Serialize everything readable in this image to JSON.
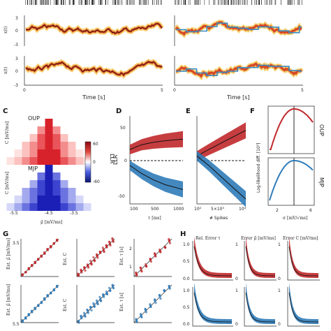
{
  "panel_labels": {
    "C": "C",
    "D": "D",
    "E": "E",
    "F": "F",
    "G": "G",
    "H": "H"
  },
  "top": {
    "ylabel": "x(t)",
    "yticks_top": [
      "3",
      "0",
      "-3"
    ],
    "yticks_bottom": [
      "3",
      "0",
      "-3"
    ],
    "xlabel": "Time [s]",
    "xticks": [
      "0",
      "5"
    ]
  },
  "panel_c": {
    "oup_label": "OUP",
    "mjp_label": "MJP",
    "ylabel": "C [mV/ms]",
    "xlabel": "μ̃ [mV/ms]",
    "xticks": [
      "-5.5",
      "-4.5",
      "-3.5"
    ],
    "colorbar_label": "LLR",
    "colorbar_ticks": [
      "60",
      "0",
      "-60"
    ]
  },
  "panel_d": {
    "ylabel": "LLR",
    "xlabel": "τ [ms]",
    "xticks": [
      "100",
      "500",
      "1000"
    ],
    "yticks": [
      "50",
      "0",
      "-50"
    ]
  },
  "panel_e": {
    "xlabel": "# Spikes",
    "xticks": [
      "10²",
      "5×10³",
      "10⁴"
    ]
  },
  "panel_f": {
    "ylabel": "Log-likelihood diff. [10²]",
    "xlabel": "σ [mV/√ms]",
    "xticks": [
      "2",
      "6"
    ],
    "right_top": "OUP",
    "right_bottom": "MJP"
  },
  "panel_g": {
    "ylabel_mu": "Est. μ̃ [mV/ms]",
    "ylabel_c": "Est. C",
    "ylabel_tau": "Est. τ [s]",
    "ytick_mu_top": "3.5",
    "ytick_mu_bottom": "5.5",
    "ytick_tau": "1",
    "ytick_tau2": "2"
  },
  "panel_h": {
    "title_tau": "Rel. Error τ",
    "title_mu": "Error μ̃ [mV/ms]",
    "title_c": "Error C [mV/ms]",
    "yticks_tau": [
      "1.0",
      "0.5",
      "0.0"
    ],
    "yticks_mu": [
      "1",
      "0"
    ],
    "yticks_c": [
      "1",
      "0"
    ]
  },
  "colors": {
    "red": "#c0282b",
    "blue": "#2f7bb8",
    "dark": "#2a1a10",
    "heat": "#f5c542"
  },
  "chart_data": [
    {
      "type": "line",
      "panel": "D",
      "x": [
        100,
        300,
        500,
        700,
        1000
      ],
      "series": [
        {
          "name": "OUP",
          "values": [
            8,
            14,
            17,
            19,
            21
          ]
        },
        {
          "name": "MJP",
          "values": [
            -12,
            -22,
            -30,
            -36,
            -42
          ]
        }
      ],
      "ylim": [
        -60,
        50
      ],
      "xlabel": "τ [ms]",
      "ylabel": "LLR"
    },
    {
      "type": "line",
      "panel": "E",
      "x": [
        100,
        2500,
        5000,
        7500,
        10000
      ],
      "series": [
        {
          "name": "OUP",
          "values": [
            0,
            8,
            16,
            24,
            32
          ]
        },
        {
          "name": "MJP",
          "values": [
            0,
            -12,
            -26,
            -40,
            -54
          ]
        }
      ],
      "ylim": [
        -60,
        50
      ],
      "xlabel": "# Spikes"
    }
  ]
}
